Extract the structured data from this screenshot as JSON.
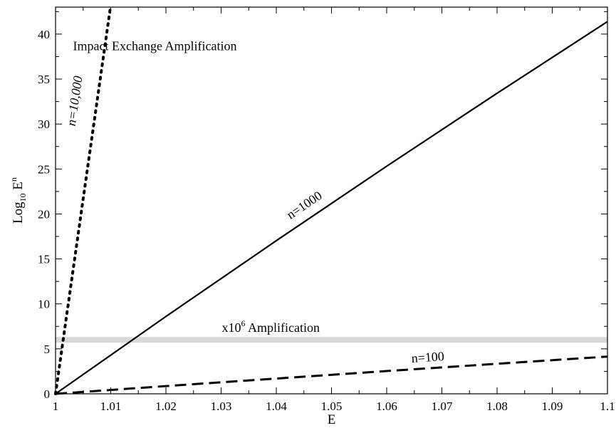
{
  "chart_data": {
    "type": "line",
    "title": "",
    "xlabel": "E",
    "ylabel": {
      "base": "Log",
      "sub": "10",
      "main": " E",
      "sup": "n"
    },
    "xlim": [
      1.0,
      1.1
    ],
    "ylim": [
      0,
      43
    ],
    "x_ticks": [
      1,
      1.01,
      1.02,
      1.03,
      1.04,
      1.05,
      1.06,
      1.07,
      1.08,
      1.09,
      1.1
    ],
    "x_tick_labels": [
      "1",
      "1.01",
      "1.02",
      "1.03",
      "1.04",
      "1.05",
      "1.06",
      "1.07",
      "1.08",
      "1.09",
      "1.1"
    ],
    "y_ticks": [
      0,
      5,
      10,
      15,
      20,
      25,
      30,
      35,
      40
    ],
    "y_tick_labels": [
      "0",
      "5",
      "10",
      "15",
      "20",
      "25",
      "30",
      "35",
      "40"
    ],
    "grid": false,
    "series": [
      {
        "name": "n=10,000",
        "n": 10000,
        "style": "dotted",
        "color": "#000000",
        "x": [
          1.0,
          1.002,
          1.004,
          1.006,
          1.008,
          1.0099
        ],
        "y": [
          0,
          8.68,
          17.34,
          25.97,
          34.59,
          42.81
        ]
      },
      {
        "name": "n=1000",
        "n": 1000,
        "style": "solid",
        "color": "#000000",
        "x": [
          1.0,
          1.02,
          1.04,
          1.06,
          1.08,
          1.1
        ],
        "y": [
          0,
          8.6,
          17.03,
          25.31,
          33.42,
          41.39
        ]
      },
      {
        "name": "n=100",
        "n": 100,
        "style": "dashed",
        "color": "#000000",
        "x": [
          1.0,
          1.02,
          1.04,
          1.06,
          1.08,
          1.1
        ],
        "y": [
          0,
          0.86,
          1.7,
          2.53,
          3.34,
          4.14
        ]
      }
    ],
    "bands": [
      {
        "y": 6,
        "label_base": "x10",
        "label_sup": "6",
        "label_tail": " Amplification",
        "color": "#d9d9d9"
      }
    ],
    "annotations": [
      {
        "text": "Impact Exchange Amplification",
        "x": 1.018,
        "y": 38.2
      },
      {
        "text": "n=10,000",
        "series": "n=10,000",
        "x": 1.0042,
        "y": 32.5,
        "italic": true
      },
      {
        "text": "n=1000",
        "series": "n=1000",
        "x": 1.0455,
        "y": 20.6
      },
      {
        "text": "n=100",
        "series": "n=100",
        "x": 1.0675,
        "y": 3.6
      }
    ]
  }
}
